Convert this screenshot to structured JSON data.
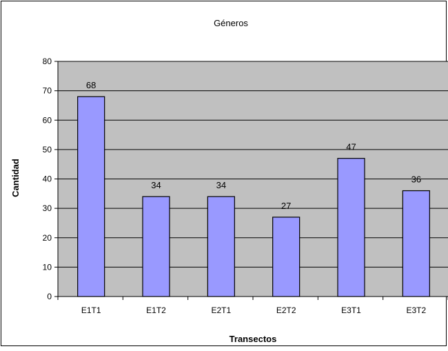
{
  "colors": {
    "bar_fill": "#9999ff",
    "bar_stroke": "#000000",
    "plot_background": "#c0c0c0",
    "gridline": "#000000",
    "chart_background": "#ffffff",
    "chart_border": "#000000"
  },
  "chart_data": {
    "type": "bar",
    "title": "Géneros",
    "xlabel": "Transectos",
    "ylabel": "Cantidad",
    "categories": [
      "E1T1",
      "E1T2",
      "E2T1",
      "E2T2",
      "E3T1",
      "E3T2"
    ],
    "values": [
      68,
      34,
      34,
      27,
      47,
      36
    ],
    "data_labels": [
      "68",
      "34",
      "34",
      "27",
      "47",
      "36"
    ],
    "ylim": [
      0,
      80
    ],
    "yticks": [
      0,
      10,
      20,
      30,
      40,
      50,
      60,
      70,
      80
    ],
    "grid": true,
    "legend": "none"
  }
}
